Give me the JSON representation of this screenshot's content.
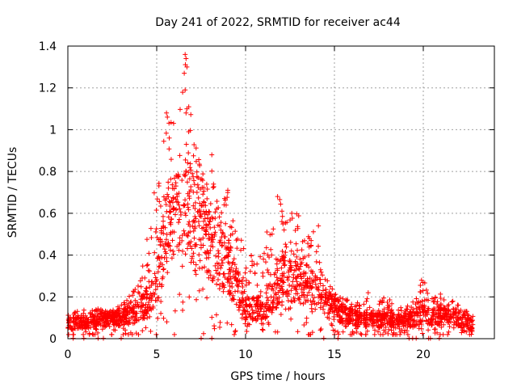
{
  "chart_data": {
    "type": "scatter",
    "title": "Day 241 of 2022, SRMTID for receiver ac44",
    "xlabel": "GPS time / hours",
    "ylabel": "SRMTID / TECUs",
    "xlim": [
      0,
      24
    ],
    "ylim": [
      0,
      1.4
    ],
    "x_ticks": [
      0,
      5,
      10,
      15,
      20
    ],
    "y_ticks": [
      0,
      0.2,
      0.4,
      0.6,
      0.8,
      1,
      1.2,
      1.4
    ],
    "x_tick_labels": [
      "0",
      "5",
      "10",
      "15",
      "20"
    ],
    "y_tick_labels": [
      "0",
      "0.2",
      "0.4",
      "0.6",
      "0.8",
      "1",
      "1.2",
      "1.4"
    ],
    "grid": true,
    "marker": "+",
    "marker_color": "#ff0000",
    "time_coverage_hours": [
      0,
      22.8
    ],
    "envelope": {
      "x": [
        0,
        1,
        2,
        3,
        3.7,
        4.3,
        4.8,
        5.2,
        5.6,
        6.0,
        6.3,
        6.6,
        7.0,
        7.5,
        8.0,
        8.5,
        9.0,
        9.5,
        10.0,
        10.5,
        11.0,
        11.5,
        12.0,
        12.5,
        13.0,
        13.5,
        14.0,
        14.5,
        15.0,
        16.0,
        17.0,
        18.0,
        19.0,
        19.5,
        20.0,
        20.5,
        21.0,
        21.5,
        22.0,
        22.8
      ],
      "median": [
        0.07,
        0.08,
        0.09,
        0.1,
        0.12,
        0.16,
        0.22,
        0.35,
        0.5,
        0.55,
        0.6,
        0.62,
        0.6,
        0.55,
        0.45,
        0.4,
        0.35,
        0.25,
        0.15,
        0.14,
        0.15,
        0.2,
        0.28,
        0.3,
        0.28,
        0.25,
        0.22,
        0.18,
        0.14,
        0.1,
        0.09,
        0.09,
        0.08,
        0.1,
        0.12,
        0.1,
        0.12,
        0.11,
        0.09,
        0.07
      ],
      "max": [
        0.12,
        0.14,
        0.15,
        0.16,
        0.25,
        0.38,
        0.72,
        0.85,
        1.08,
        1.0,
        1.1,
        1.36,
        1.0,
        0.82,
        0.88,
        0.62,
        0.72,
        0.52,
        0.45,
        0.38,
        0.45,
        0.6,
        0.68,
        0.58,
        0.62,
        0.5,
        0.54,
        0.3,
        0.22,
        0.18,
        0.2,
        0.2,
        0.14,
        0.22,
        0.28,
        0.2,
        0.22,
        0.2,
        0.16,
        0.12
      ]
    },
    "outliers": [
      {
        "x": 6.6,
        "y": 1.36
      },
      {
        "x": 6.65,
        "y": 1.34
      },
      {
        "x": 6.7,
        "y": 1.3
      },
      {
        "x": 6.55,
        "y": 1.27
      },
      {
        "x": 6.6,
        "y": 1.19
      },
      {
        "x": 5.55,
        "y": 1.08
      },
      {
        "x": 5.6,
        "y": 1.06
      },
      {
        "x": 6.7,
        "y": 1.1
      },
      {
        "x": 6.65,
        "y": 1.08
      },
      {
        "x": 5.95,
        "y": 1.03
      },
      {
        "x": 6.8,
        "y": 0.99
      },
      {
        "x": 8.1,
        "y": 0.88
      },
      {
        "x": 11.8,
        "y": 0.68
      },
      {
        "x": 9.0,
        "y": 0.71
      },
      {
        "x": 12.6,
        "y": 0.6
      },
      {
        "x": 14.1,
        "y": 0.54
      },
      {
        "x": 19.9,
        "y": 0.28
      },
      {
        "x": 16.9,
        "y": 0.22
      }
    ],
    "zero_markers_x": [
      0.3,
      0.9,
      1.7,
      2.0,
      3.0,
      7.5,
      8.1,
      14.4,
      15.2,
      19.2,
      19.4,
      19.6,
      20.3,
      20.4,
      20.9
    ]
  }
}
